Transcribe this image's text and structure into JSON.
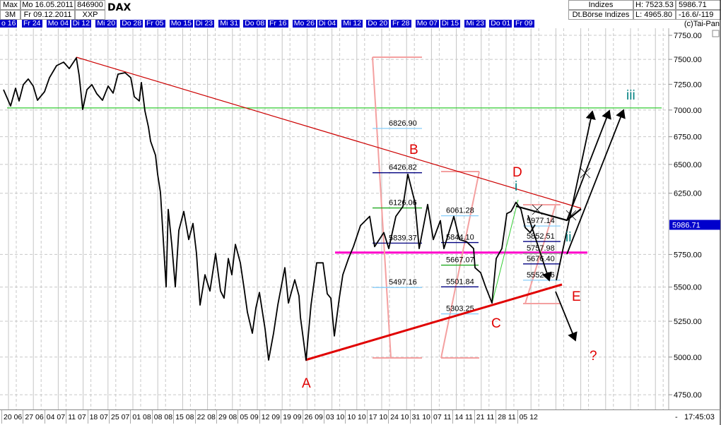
{
  "header": {
    "range_label": "Max",
    "period_label": "3M",
    "start_date": "Mo 16.05.2011",
    "end_date": "Fr 09.12.2011",
    "wkn": "846900",
    "exchange": "XXP",
    "title": "DAX",
    "category": "Indizes",
    "source": "Dt.Börse Indizes",
    "high": "H: 7523.53",
    "low": "L: 4965.80",
    "last": "5986.71",
    "change": "-16.6/-119",
    "copyright": "(c)Tai-Pan"
  },
  "footer": {
    "dash": "-",
    "time": "17:45:03"
  },
  "colors": {
    "price": "#000000",
    "downtrend": "#cc0000",
    "uptrend": "#e00000",
    "support_green": "#33cc33",
    "magenta_line": "#ff00cc",
    "fib_bracket": "#f4a0a0",
    "wave_label_red": "#e00000",
    "wave_label_teal": "#008080",
    "date_label_bg": "#0000cc"
  },
  "chart_data": {
    "type": "line",
    "title": "DAX",
    "y_scale": "log",
    "ylim": [
      4700,
      7800
    ],
    "grid": true,
    "top_date_labels": [
      "o 16",
      "Fr 24",
      "Mo 04",
      "Di 12",
      "Mi 20",
      "Do 28",
      "Fr 05",
      "Mo 15",
      "Di 23",
      "Mi 31",
      "Do 08",
      "Fr 16",
      "Mo 26",
      "Di 04",
      "Mi 12",
      "Do 20",
      "Fr 28",
      "Mo 07",
      "Di 15",
      "Mi 23",
      "Do 01",
      "Fr 09"
    ],
    "bottom_date_labels": [
      "20 06",
      "27 06",
      "04 07",
      "11 07",
      "18 07",
      "25 07",
      "01 08",
      "08 08",
      "15 08",
      "22 08",
      "29 08",
      "05 09",
      "12 09",
      "19 09",
      "26 09",
      "03 10",
      "10 10",
      "17 10",
      "24 10",
      "31 10",
      "07 11",
      "14 11",
      "21 11",
      "28 11",
      "05 12"
    ],
    "y_ticks": [
      "7750.00",
      "7500.00",
      "7250.00",
      "7000.00",
      "6750.00",
      "6500.00",
      "6250.00",
      "5750.00",
      "5500.00",
      "5250.00",
      "5000.00",
      "4750.00"
    ],
    "y_tick_values": [
      7750,
      7500,
      7250,
      7000,
      6750,
      6500,
      6250,
      5750,
      5500,
      5250,
      5000,
      4750
    ],
    "current_price": {
      "label": "5986.71",
      "value": 5986.71
    },
    "series": [
      {
        "values": [
          7197,
          7039,
          7211,
          7087,
          7246,
          7302,
          7232,
          7094,
          7177,
          7315,
          7436,
          7472,
          7407,
          7515,
          7337,
          7006,
          7197,
          7246,
          7156,
          7094,
          7232,
          7163,
          7351,
          7365,
          7315,
          7128,
          7087,
          7267,
          6993,
          6840,
          6710,
          6582,
          6414,
          6257,
          5502,
          6114,
          5829,
          5502,
          5941,
          6097,
          5868,
          5998,
          5757,
          5367,
          5593,
          5471,
          5757,
          5471,
          5418,
          5718,
          5593,
          5829,
          5685,
          5502,
          5315,
          5165,
          5346,
          5460,
          5195,
          4980,
          5165,
          5367,
          5647,
          5382,
          5555,
          5434,
          5280,
          4980,
          5367,
          5685,
          5685,
          5450,
          5418,
          5146,
          5418,
          5593,
          5718,
          5812,
          5981,
          6056,
          5812,
          5924,
          5796,
          6056,
          6138,
          6414,
          6173,
          5796,
          6155,
          5868,
          6021,
          5796,
          6056,
          5868,
          5851,
          5796,
          5647,
          5609,
          5502,
          5382,
          5718,
          5796,
          6079,
          6097,
          6173,
          6114,
          5964,
          5924,
          5987
        ]
      }
    ],
    "horizontal_lines": [
      {
        "name": "green-support",
        "value": 7020
      },
      {
        "name": "magenta-level",
        "value": 5765
      }
    ],
    "fib_groups": [
      {
        "levels": [
          {
            "label": "6826.90",
            "value": 6826.9,
            "color": "#87cefa"
          },
          {
            "label": "6426.82",
            "value": 6426.82,
            "color": "#000080"
          },
          {
            "label": "6126.06",
            "value": 6126.06,
            "color": "#22aa22"
          },
          {
            "label": "5839.37",
            "value": 5839.37,
            "color": "#000080"
          },
          {
            "label": "5497.16",
            "value": 5497.16,
            "color": "#87cefa"
          }
        ]
      },
      {
        "levels": [
          {
            "label": "6061.28",
            "value": 6061.28,
            "color": "#87cefa"
          },
          {
            "label": "5844.10",
            "value": 5844.1,
            "color": "#000080"
          },
          {
            "label": "5667.07",
            "value": 5667.07,
            "color": "#22aa22"
          },
          {
            "label": "5501.84",
            "value": 5501.84,
            "color": "#000080"
          },
          {
            "label": "5303.25",
            "value": 5303.25,
            "color": "#87cefa"
          }
        ]
      },
      {
        "levels": [
          {
            "label": "5977.14",
            "value": 5977.14,
            "color": "#87cefa"
          },
          {
            "label": "5852.51",
            "value": 5852.51,
            "color": "#000080"
          },
          {
            "label": "5757.98",
            "value": 5757.98,
            "color": "#888888"
          },
          {
            "label": "5676.40",
            "value": 5676.4,
            "color": "#000080"
          },
          {
            "label": "5552.16",
            "value": 5552.16,
            "color": "#87cefa"
          }
        ]
      }
    ],
    "annotations": {
      "A": "A",
      "B": "B",
      "C": "C",
      "D": "D",
      "E": "E",
      "question": "?",
      "i": "i",
      "ii": "ii",
      "iii": "iii"
    }
  }
}
